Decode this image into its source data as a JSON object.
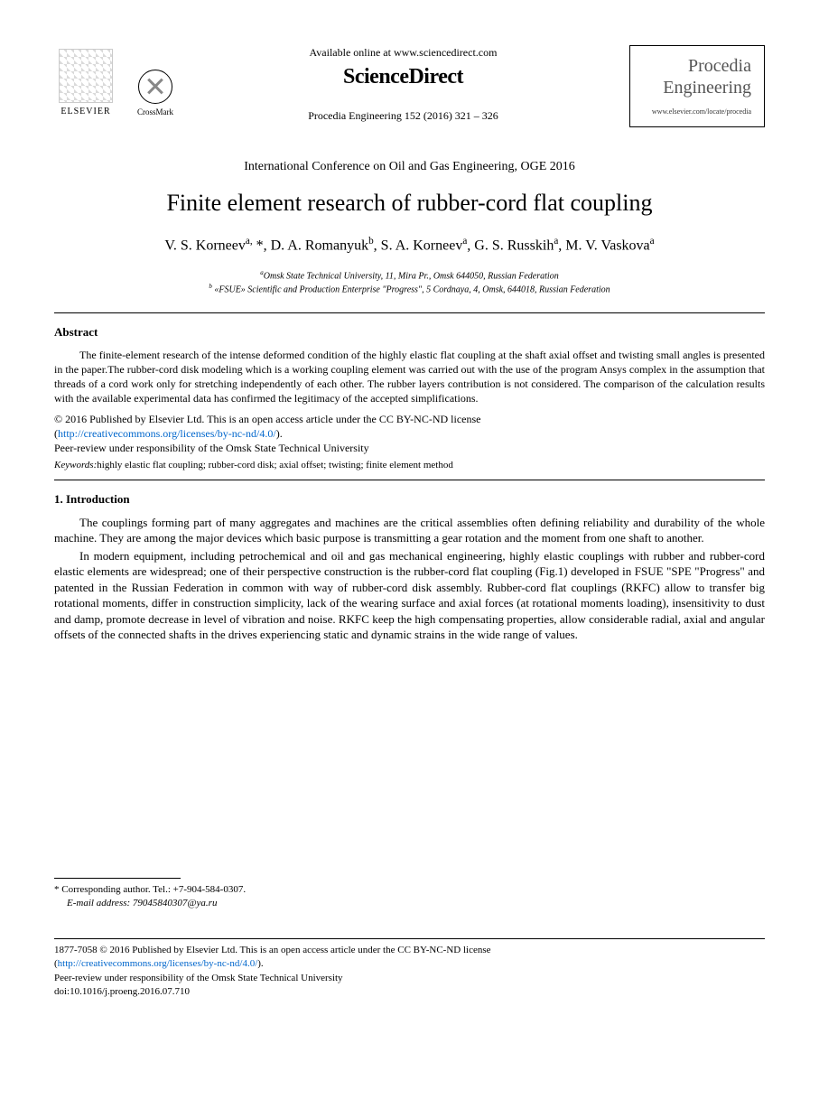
{
  "header": {
    "elsevier_label": "ELSEVIER",
    "crossmark_label": "CrossMark",
    "available_online": "Available online at www.sciencedirect.com",
    "sciencedirect": "ScienceDirect",
    "journal_ref": "Procedia Engineering 152 (2016) 321 – 326",
    "procedia_line1": "Procedia",
    "procedia_line2": "Engineering",
    "procedia_url": "www.elsevier.com/locate/procedia"
  },
  "conference": "International Conference on Oil and Gas Engineering, OGE 2016",
  "title": "Finite element research of rubber-cord flat coupling",
  "authors_html": "V. S. Korneev<sup>a,</sup> *, D. A. Romanyuk<sup>b</sup>, S. A. Korneev<sup>a</sup>, G. S. Russkih<sup>a</sup>, M. V. Vaskova<sup>a</sup>",
  "affiliations": {
    "a": "<sup>a</sup>Omsk State Technical University, 11, Mira Pr., Omsk 644050, Russian Federation",
    "b": "<sup>b</sup> «FSUE» Scientific and Production Enterprise \"Progress\", 5 Cordnaya, 4, Omsk, 644018, Russian Federation"
  },
  "abstract": {
    "heading": "Abstract",
    "text": "The finite-element research of the intense deformed condition of the highly elastic flat coupling at the shaft axial offset and twisting small angles is presented in the paper.The rubber-cord disk modeling which is a working coupling element was carried out with the use of the program Ansys complex in the assumption that threads of a cord work only for stretching independently of each other. The rubber layers contribution is not considered. The comparison of the calculation results with the available experimental data has confirmed the legitimacy of the accepted simplifications."
  },
  "copyright": {
    "line1": "© 2016 Published by Elsevier Ltd. This is an open access article under the CC BY-NC-ND license",
    "link_text": "http://creativecommons.org/licenses/by-nc-nd/4.0/",
    "peer_review": "Peer-review under responsibility of the Omsk State Technical University"
  },
  "keywords": {
    "label": "Keywords:",
    "text": "highly elastic flat coupling; rubber-cord disk; axial offset; twisting; finite element method"
  },
  "intro": {
    "heading": "1. Introduction",
    "para1": "The couplings forming part of many aggregates and machines are the critical assemblies often defining reliability and durability of the whole machine. They are among the major devices which basic purpose is transmitting a gear rotation and the moment from one shaft to another.",
    "para2": "In modern equipment, including petrochemical and oil and gas mechanical engineering, highly elastic couplings with rubber and rubber-cord elastic elements are widespread; one of their perspective construction is the rubber-cord flat coupling (Fig.1) developed in FSUE \"SPE \"Progress\" and patented in the Russian Federation in common with way of rubber-cord disk assembly. Rubber-cord flat couplings (RKFC) allow to transfer big rotational moments, differ in construction simplicity, lack of the wearing surface and axial forces (at rotational moments loading), insensitivity to dust and damp, promote decrease in level of vibration and noise. RKFC keep the high compensating properties, allow considerable radial, axial and angular offsets of the connected shafts in the drives experiencing static and dynamic strains in the wide range of values."
  },
  "footnote": {
    "corresponding": "* Corresponding author. Tel.: +7-904-584-0307.",
    "email_label": "E-mail address:",
    "email": " 79045840307@ya.ru"
  },
  "footer": {
    "issn_line": "1877-7058 © 2016 Published by Elsevier Ltd. This is an open access article under the CC BY-NC-ND license",
    "link_text": "http://creativecommons.org/licenses/by-nc-nd/4.0/",
    "peer_review": "Peer-review under responsibility of the Omsk State Technical University",
    "doi": "doi:10.1016/j.proeng.2016.07.710"
  },
  "colors": {
    "link": "#0066cc",
    "text": "#000000",
    "background": "#ffffff"
  }
}
